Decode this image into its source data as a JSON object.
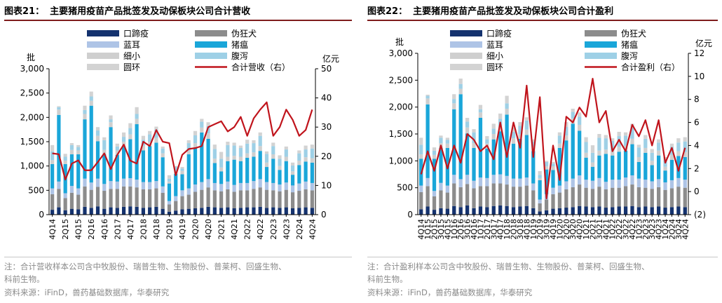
{
  "charts": [
    {
      "fig_label": "图表21：",
      "fig_title": "主要猪用疫苗产品批签发及动保板块公司合计营收",
      "note1": "注：合计营收样本公司含中牧股份、瑞普生物、生物股份、普莱柯、回盛生物、",
      "note2": "科前生物。",
      "source": "资料来源：iFinD，兽药基础数据库，华泰研究"
    },
    {
      "fig_label": "图表22：",
      "fig_title": "主要猪用疫苗产品批签发及动保板块公司合计盈利",
      "note1": "注：合计盈利样本公司含中牧股份、瑞普生物、生物股份、普莱柯、回盛生物、",
      "note2": "科前生物。",
      "source": "资料来源：iFinD，兽药基础数据库，华泰研究"
    }
  ],
  "colors": {
    "口蹄疫": "#14326e",
    "伪狂犬": "#8c8c8c",
    "蓝耳": "#aec4e6",
    "猪瘟": "#1aa6d9",
    "细小": "#cfcfcf",
    "腹泻": "#9ed0e6",
    "圆环": "#d3d3d3",
    "line": "#c0141c"
  },
  "chart_data": [
    {
      "type": "bar",
      "stacked": true,
      "categories": [
        "4Q14",
        "1Q15",
        "2Q15",
        "3Q15",
        "4Q15",
        "1Q16",
        "2Q16",
        "3Q16",
        "4Q16",
        "1Q17",
        "2Q17",
        "3Q17",
        "4Q17",
        "1Q18",
        "2Q18",
        "3Q18",
        "4Q18",
        "1Q19",
        "2Q19",
        "3Q19",
        "4Q19",
        "1Q20",
        "2Q20",
        "3Q20",
        "4Q20",
        "1Q21",
        "2Q21",
        "3Q21",
        "4Q21",
        "1Q22",
        "2Q22",
        "3Q22",
        "4Q22",
        "1Q23",
        "2Q23",
        "3Q23",
        "4Q23",
        "1Q24",
        "2Q24",
        "3Q24",
        "4Q24"
      ],
      "tick_labels": [
        "4Q14",
        "2Q15",
        "4Q15",
        "2Q16",
        "4Q16",
        "2Q17",
        "4Q17",
        "2Q18",
        "4Q18",
        "2Q19",
        "4Q19",
        "2Q20",
        "4Q20",
        "2Q21",
        "4Q21",
        "2Q22",
        "4Q22",
        "2Q23",
        "4Q23",
        "2Q24",
        "4Q24"
      ],
      "left_axis": {
        "label": "批",
        "ylim": [
          0,
          3000
        ],
        "ticks": [
          "0",
          "500",
          "1,000",
          "1,500",
          "2,000",
          "2,500",
          "3,000"
        ]
      },
      "right_axis": {
        "label": "亿元",
        "ylim": [
          0,
          50
        ],
        "ticks": [
          "0",
          "10",
          "20",
          "30",
          "40",
          "50"
        ]
      },
      "series": [
        {
          "name": "口蹄疫",
          "values": [
            100,
            150,
            90,
            120,
            110,
            160,
            140,
            170,
            120,
            150,
            140,
            160,
            170,
            160,
            140,
            150,
            160,
            120,
            60,
            80,
            110,
            120,
            130,
            140,
            160,
            150,
            140,
            150,
            130,
            140,
            150,
            150,
            160,
            140,
            150,
            140,
            150,
            130,
            140,
            150,
            140
          ]
        },
        {
          "name": "伪狂犬",
          "values": [
            320,
            380,
            250,
            330,
            300,
            420,
            370,
            400,
            370,
            380,
            390,
            420,
            410,
            400,
            380,
            370,
            380,
            330,
            150,
            200,
            270,
            290,
            340,
            370,
            400,
            350,
            340,
            370,
            340,
            360,
            350,
            380,
            400,
            370,
            350,
            340,
            360,
            330,
            350,
            370,
            360
          ]
        },
        {
          "name": "蓝耳",
          "values": [
            120,
            150,
            100,
            140,
            130,
            160,
            150,
            170,
            140,
            160,
            150,
            160,
            170,
            160,
            150,
            150,
            150,
            130,
            70,
            100,
            120,
            130,
            150,
            160,
            170,
            150,
            150,
            160,
            140,
            150,
            150,
            160,
            170,
            160,
            150,
            140,
            150,
            140,
            150,
            160,
            150
          ]
        },
        {
          "name": "猪瘟",
          "values": [
            500,
            1370,
            600,
            650,
            700,
            1220,
            1580,
            770,
            610,
            1110,
            550,
            660,
            800,
            1140,
            650,
            740,
            790,
            600,
            360,
            460,
            330,
            700,
            760,
            1020,
            830,
            410,
            260,
            420,
            520,
            450,
            520,
            500,
            580,
            310,
            500,
            300,
            440,
            220,
            380,
            410,
            420
          ]
        },
        {
          "name": "细小",
          "values": [
            80,
            110,
            70,
            90,
            80,
            110,
            100,
            110,
            90,
            100,
            90,
            100,
            100,
            110,
            100,
            90,
            100,
            80,
            40,
            60,
            70,
            80,
            90,
            100,
            110,
            90,
            80,
            90,
            80,
            90,
            90,
            90,
            100,
            90,
            90,
            80,
            90,
            70,
            90,
            90,
            90
          ]
        },
        {
          "name": "腹泻",
          "values": [
            180,
            50,
            80,
            100,
            70,
            80,
            90,
            110,
            200,
            60,
            80,
            100,
            130,
            100,
            120,
            150,
            170,
            100,
            60,
            80,
            50,
            150,
            160,
            120,
            150,
            200,
            180,
            240,
            210,
            180,
            200,
            190,
            210,
            180,
            170,
            150,
            150,
            120,
            150,
            160,
            200
          ]
        },
        {
          "name": "圆环",
          "values": [
            130,
            20,
            60,
            40,
            40,
            90,
            100,
            70,
            60,
            80,
            60,
            90,
            100,
            140,
            80,
            70,
            60,
            40,
            70,
            20,
            30,
            60,
            90,
            60,
            80,
            90,
            140,
            70,
            60,
            50,
            80,
            60,
            70,
            50,
            70,
            70,
            60,
            60,
            60,
            80,
            80
          ]
        }
      ],
      "line": {
        "name": "合计营收（右）",
        "values": [
          21,
          20.7,
          12,
          17.5,
          18.6,
          15.2,
          15.2,
          18,
          21,
          15.6,
          20.5,
          24,
          18.5,
          17.5,
          25,
          23.5,
          29,
          25,
          24.5,
          13.5,
          20.5,
          22.5,
          22.8,
          23.5,
          30,
          31,
          32,
          28.5,
          30,
          33.5,
          27,
          33,
          36,
          38.5,
          27,
          30,
          36,
          32.5,
          27,
          29,
          36
        ]
      }
    },
    {
      "type": "bar",
      "stacked": true,
      "categories": [
        "4Q14",
        "1Q15",
        "2Q15",
        "3Q15",
        "4Q15",
        "1Q16",
        "2Q16",
        "3Q16",
        "4Q16",
        "1Q17",
        "2Q17",
        "3Q17",
        "4Q17",
        "1Q18",
        "2Q18",
        "3Q18",
        "4Q18",
        "1Q19",
        "2Q19",
        "3Q19",
        "4Q19",
        "1Q20",
        "2Q20",
        "3Q20",
        "4Q20",
        "1Q21",
        "2Q21",
        "3Q21",
        "4Q21",
        "1Q22",
        "2Q22",
        "3Q22",
        "4Q22",
        "1Q23",
        "2Q23",
        "3Q23",
        "4Q23",
        "1Q24",
        "2Q24",
        "3Q24",
        "4Q24"
      ],
      "tick_labels": [
        "4Q14",
        "1Q15",
        "2Q15",
        "3Q15",
        "4Q15",
        "1Q16",
        "2Q16",
        "3Q16",
        "4Q16",
        "1Q17",
        "2Q17",
        "3Q17",
        "4Q17",
        "1Q18",
        "2Q18",
        "3Q18",
        "4Q18",
        "1Q19",
        "2Q19",
        "3Q19",
        "4Q19",
        "1Q20",
        "2Q20",
        "3Q20",
        "4Q20",
        "1Q21",
        "2Q21",
        "3Q21",
        "4Q21",
        "1Q22",
        "2Q22",
        "3Q22",
        "4Q22",
        "1Q23",
        "2Q23",
        "3Q23",
        "4Q23",
        "1Q24",
        "2Q24",
        "3Q24",
        "4Q24"
      ],
      "left_axis": {
        "label": "批",
        "ylim": [
          0,
          3000
        ],
        "ticks": [
          "0",
          "500",
          "1,000",
          "1,500",
          "2,000",
          "2,500",
          "3,000"
        ]
      },
      "right_axis": {
        "label": "亿元",
        "ylim": [
          -2,
          12
        ],
        "ticks": [
          "(2)",
          "0",
          "2",
          "4",
          "6",
          "8",
          "10",
          "12"
        ]
      },
      "series": [
        {
          "name": "口蹄疫",
          "values": [
            100,
            150,
            90,
            120,
            110,
            160,
            140,
            170,
            120,
            150,
            140,
            160,
            170,
            160,
            140,
            150,
            160,
            120,
            60,
            80,
            110,
            120,
            130,
            140,
            160,
            150,
            140,
            150,
            130,
            140,
            150,
            150,
            160,
            140,
            150,
            140,
            150,
            130,
            140,
            150,
            140
          ]
        },
        {
          "name": "伪狂犬",
          "values": [
            320,
            380,
            250,
            330,
            300,
            420,
            370,
            400,
            370,
            380,
            390,
            420,
            410,
            400,
            380,
            370,
            380,
            330,
            150,
            200,
            270,
            290,
            340,
            370,
            400,
            350,
            340,
            370,
            340,
            360,
            350,
            380,
            400,
            370,
            350,
            340,
            360,
            330,
            350,
            370,
            360
          ]
        },
        {
          "name": "蓝耳",
          "values": [
            120,
            150,
            100,
            140,
            130,
            160,
            150,
            170,
            140,
            160,
            150,
            160,
            170,
            160,
            150,
            150,
            150,
            130,
            70,
            100,
            120,
            130,
            150,
            160,
            170,
            150,
            150,
            160,
            140,
            150,
            150,
            160,
            170,
            160,
            150,
            140,
            150,
            140,
            150,
            160,
            150
          ]
        },
        {
          "name": "猪瘟",
          "values": [
            500,
            1370,
            600,
            650,
            700,
            1220,
            1580,
            770,
            610,
            1110,
            550,
            660,
            800,
            1140,
            650,
            740,
            790,
            600,
            360,
            460,
            330,
            700,
            760,
            1020,
            830,
            410,
            260,
            420,
            520,
            450,
            520,
            500,
            580,
            310,
            500,
            300,
            440,
            220,
            380,
            410,
            420
          ]
        },
        {
          "name": "细小",
          "values": [
            80,
            110,
            70,
            90,
            80,
            110,
            100,
            110,
            90,
            100,
            90,
            100,
            100,
            110,
            100,
            90,
            100,
            80,
            40,
            60,
            70,
            80,
            90,
            100,
            110,
            90,
            80,
            90,
            80,
            90,
            90,
            90,
            100,
            90,
            90,
            80,
            90,
            70,
            90,
            90,
            90
          ]
        },
        {
          "name": "腹泻",
          "values": [
            180,
            50,
            80,
            100,
            70,
            80,
            90,
            110,
            200,
            60,
            80,
            100,
            130,
            100,
            120,
            150,
            170,
            100,
            60,
            80,
            50,
            150,
            160,
            120,
            150,
            200,
            180,
            240,
            210,
            180,
            200,
            190,
            210,
            180,
            170,
            150,
            150,
            120,
            150,
            160,
            200
          ]
        },
        {
          "name": "圆环",
          "values": [
            130,
            20,
            60,
            40,
            40,
            90,
            100,
            70,
            60,
            80,
            60,
            90,
            100,
            140,
            80,
            70,
            60,
            40,
            70,
            20,
            30,
            60,
            90,
            60,
            80,
            90,
            140,
            70,
            60,
            50,
            80,
            60,
            70,
            50,
            70,
            70,
            60,
            60,
            60,
            80,
            80
          ]
        }
      ],
      "line": {
        "name": "合计盈利（右）",
        "values": [
          1.5,
          3.5,
          1.8,
          4.0,
          2.0,
          4.0,
          2.5,
          5.0,
          4.5,
          3.5,
          4.0,
          2.8,
          6.0,
          3.0,
          6.0,
          3.8,
          9.2,
          3.0,
          8.2,
          -0.6,
          4.0,
          1.0,
          6.5,
          6.0,
          7.3,
          6.5,
          9.8,
          6.0,
          7.0,
          3.5,
          4.5,
          3.5,
          5.8,
          4.8,
          6.2,
          4.0,
          6.2,
          2.5,
          3.8,
          1.8,
          3.8
        ]
      }
    }
  ]
}
